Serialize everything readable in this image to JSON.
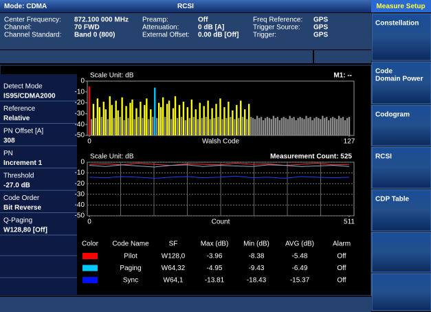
{
  "header": {
    "mode": "Mode: CDMA",
    "title": "RCSI"
  },
  "info": {
    "rows": [
      [
        "Center Frequency:",
        "872.100 000 MHz",
        "Preamp:",
        "Off",
        "Freq Reference:",
        "GPS"
      ],
      [
        "Channel:",
        "70 FWD",
        "Attenuation:",
        "0 dB  [A]",
        "Trigger Source:",
        "GPS"
      ],
      [
        "Channel Standard:",
        "Band 0 (800)",
        "External Offset:",
        "0.00 dB  [Off]",
        "Trigger:",
        "GPS"
      ]
    ]
  },
  "settings": [
    {
      "label": "Detect Mode",
      "value": "IS95/CDMA2000"
    },
    {
      "label": "Reference",
      "value": "Relative"
    },
    {
      "label": "PN Offset [A]",
      "value": "308"
    },
    {
      "label": "PN",
      "value": "Increment 1"
    },
    {
      "label": "Threshold",
      "value": "-27.0 dB"
    },
    {
      "label": "Code Order",
      "value": "Bit Reverse"
    },
    {
      "label": "Q-Paging",
      "value": "W128,80 [Off]"
    }
  ],
  "softkeys": {
    "title": "Measure Setup",
    "items": [
      [
        "Constellation"
      ],
      [
        "Code",
        "Domain Power"
      ],
      [
        "Codogram"
      ],
      [
        "RCSI"
      ],
      [
        "CDP Table"
      ]
    ]
  },
  "cdp_chart": {
    "type": "bar",
    "scale_label": "Scale Unit: dB",
    "marker_label": "M1: --",
    "xlabel": "Walsh Code",
    "xlim": [
      0,
      127
    ],
    "xticks": [
      0,
      127
    ],
    "ylim": [
      -50,
      0
    ],
    "yticks": [
      0,
      -10,
      -20,
      -30,
      -40,
      -50
    ],
    "values": [
      -5,
      -35,
      -21,
      -34,
      -16,
      -24,
      -33,
      -19,
      -26,
      -35,
      -14,
      -22,
      -34,
      -18,
      -27,
      -33,
      -15,
      -36,
      -23,
      -34,
      -20,
      -17,
      -35,
      -25,
      -33,
      -19,
      -34,
      -22,
      -16,
      -35,
      -26,
      -33,
      -6,
      -34,
      -20,
      -24,
      -15,
      -33,
      -21,
      -18,
      -35,
      -25,
      -14,
      -34,
      -22,
      -33,
      -19,
      -36,
      -24,
      -34,
      -17,
      -33,
      -26,
      -35,
      -20,
      -34,
      -23,
      -33,
      -18,
      -35,
      -25,
      -34,
      -21,
      -33,
      -16,
      -35,
      -24,
      -34,
      -19,
      -33,
      -27,
      -35,
      -22,
      -34,
      -18,
      -33,
      -26,
      -35,
      -21,
      -33,
      -34,
      -35,
      -32,
      -34,
      -33,
      -36,
      -34,
      -33,
      -34,
      -35,
      -32,
      -34,
      -33,
      -36,
      -34,
      -33,
      -34,
      -35,
      -32,
      -34,
      -33,
      -36,
      -34,
      -33,
      -34,
      -35,
      -32,
      -34,
      -33,
      -36,
      -34,
      -33,
      -34,
      -35,
      -32,
      -34,
      -33,
      -36,
      -34,
      -33,
      -34,
      -35,
      -32,
      -34,
      -33,
      -36,
      -34,
      -33
    ],
    "colors": [
      "#ff0000",
      "#8c8c8c",
      "#ffff00",
      "#8c8c8c",
      "#ffff00",
      "#ffff00",
      "#8c8c8c",
      "#ffff00",
      "#ffff00",
      "#8c8c8c",
      "#ffff00",
      "#ffff00",
      "#8c8c8c",
      "#ffff00",
      "#ffff00",
      "#8c8c8c",
      "#ffff00",
      "#8c8c8c",
      "#ffff00",
      "#8c8c8c",
      "#ffff00",
      "#ffff00",
      "#8c8c8c",
      "#ffff00",
      "#8c8c8c",
      "#ffff00",
      "#8c8c8c",
      "#ffff00",
      "#ffff00",
      "#8c8c8c",
      "#ffff00",
      "#8c8c8c",
      "#00c8ff",
      "#8c8c8c",
      "#ffff00",
      "#ffff00",
      "#ffff00",
      "#8c8c8c",
      "#ffff00",
      "#ffff00",
      "#8c8c8c",
      "#ffff00",
      "#ffff00",
      "#8c8c8c",
      "#ffff00",
      "#8c8c8c",
      "#ffff00",
      "#8c8c8c",
      "#ffff00",
      "#8c8c8c",
      "#ffff00",
      "#8c8c8c",
      "#ffff00",
      "#8c8c8c",
      "#ffff00",
      "#8c8c8c",
      "#ffff00",
      "#8c8c8c",
      "#ffff00",
      "#8c8c8c",
      "#ffff00",
      "#8c8c8c",
      "#ffff00",
      "#8c8c8c",
      "#ffff00",
      "#8c8c8c",
      "#ffff00",
      "#8c8c8c",
      "#ffff00",
      "#8c8c8c",
      "#ffff00",
      "#8c8c8c",
      "#ffff00",
      "#8c8c8c",
      "#ffff00",
      "#8c8c8c",
      "#ffff00",
      "#8c8c8c",
      "#ffff00",
      "#8c8c8c",
      "#8c8c8c",
      "#8c8c8c",
      "#8c8c8c",
      "#8c8c8c",
      "#8c8c8c",
      "#8c8c8c",
      "#8c8c8c",
      "#8c8c8c",
      "#8c8c8c",
      "#8c8c8c",
      "#8c8c8c",
      "#8c8c8c",
      "#8c8c8c",
      "#8c8c8c",
      "#8c8c8c",
      "#8c8c8c",
      "#8c8c8c",
      "#8c8c8c",
      "#8c8c8c",
      "#8c8c8c",
      "#8c8c8c",
      "#8c8c8c",
      "#8c8c8c",
      "#8c8c8c",
      "#8c8c8c",
      "#8c8c8c",
      "#8c8c8c",
      "#8c8c8c",
      "#8c8c8c",
      "#8c8c8c",
      "#8c8c8c",
      "#8c8c8c",
      "#8c8c8c",
      "#8c8c8c",
      "#8c8c8c",
      "#8c8c8c",
      "#8c8c8c",
      "#8c8c8c",
      "#8c8c8c",
      "#8c8c8c",
      "#8c8c8c",
      "#8c8c8c",
      "#8c8c8c",
      "#8c8c8c",
      "#8c8c8c",
      "#8c8c8c",
      "#8c8c8c",
      "#8c8c8c"
    ]
  },
  "rcsi_chart": {
    "type": "line",
    "scale_label": "Scale Unit: dB",
    "count_label": "Measurement Count: 525",
    "xlabel": "Count",
    "xlim": [
      0,
      511
    ],
    "xticks": [
      0,
      511
    ],
    "ylim": [
      -50,
      0
    ],
    "yticks": [
      0,
      -10,
      -20,
      -30,
      -40,
      -50
    ],
    "grid": true,
    "x": [
      0,
      32,
      64,
      96,
      128,
      160,
      192,
      224,
      256,
      288,
      320,
      352,
      384,
      416,
      448,
      480,
      511
    ],
    "series": [
      {
        "color": "#ff3030",
        "values": [
          -2,
          -1.5,
          -2.5,
          -1,
          -2,
          -3,
          -1.5,
          -2,
          -2.5,
          -1,
          -2,
          -1.5,
          -3,
          -2,
          -1,
          -2.5,
          -2
        ]
      },
      {
        "color": "#8fb0d0",
        "values": [
          -3,
          -4,
          -2.5,
          -3.5,
          -4.5,
          -3,
          -2.5,
          -4,
          -3,
          -3.5,
          -4,
          -2.5,
          -3,
          -4,
          -3.5,
          -3,
          -4
        ]
      },
      {
        "color": "#2040ff",
        "values": [
          -14,
          -14.5,
          -13.5,
          -14,
          -15,
          -14,
          -13.5,
          -14.5,
          -14,
          -13,
          -14.5,
          -14,
          -15,
          -13.5,
          -14,
          -14.5,
          -14
        ]
      }
    ]
  },
  "table": {
    "headers": [
      "Color",
      "Code Name",
      "SF",
      "Max (dB)",
      "Min (dB)",
      "AVG (dB)",
      "Alarm"
    ],
    "swatch_colors": [
      "#ff0000",
      "#00c8ff",
      "#0010ff"
    ],
    "rows": [
      [
        "Pilot",
        "W128,0",
        "-3.96",
        "-8.38",
        "-5.48",
        "Off"
      ],
      [
        "Paging",
        "W64,32",
        "-4.95",
        "-9.43",
        "-6.49",
        "Off"
      ],
      [
        "Sync",
        "W64,1",
        "-13.81",
        "-18.43",
        "-15.37",
        "Off"
      ]
    ]
  }
}
